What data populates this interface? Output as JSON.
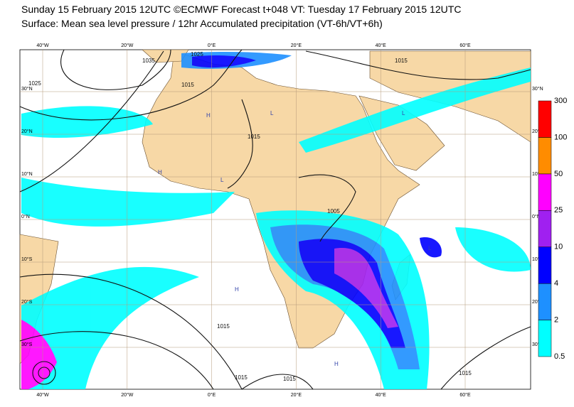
{
  "title": "Sunday 15 February 2015 12UTC ©ECMWF Forecast t+048 VT: Tuesday 17 February 2015 12UTC",
  "subtitle": "Surface: Mean sea level pressure / 12hr Accumulated precipitation (VT-6h/VT+6h)",
  "lon_labels": [
    "40°W",
    "20°W",
    "0°E",
    "20°E",
    "40°E",
    "60°E"
  ],
  "lat_labels": [
    "30°N",
    "20°N",
    "10°N",
    "0°N",
    "10°S",
    "20°S",
    "30°S"
  ],
  "isobar_labels": [
    "1025",
    "1035",
    "1025",
    "1015",
    "1015",
    "1015",
    "1005",
    "1015",
    "1015",
    "1015",
    "1015"
  ],
  "pressure_centres": [
    "H",
    "L"
  ],
  "colorbar": {
    "levels": [
      0.5,
      2,
      4,
      10,
      25,
      50,
      100,
      300
    ],
    "colors": [
      "#00ffff",
      "#1e90ff",
      "#0000ff",
      "#a020f0",
      "#ff00ff",
      "#ff8c00",
      "#ff0000"
    ]
  }
}
